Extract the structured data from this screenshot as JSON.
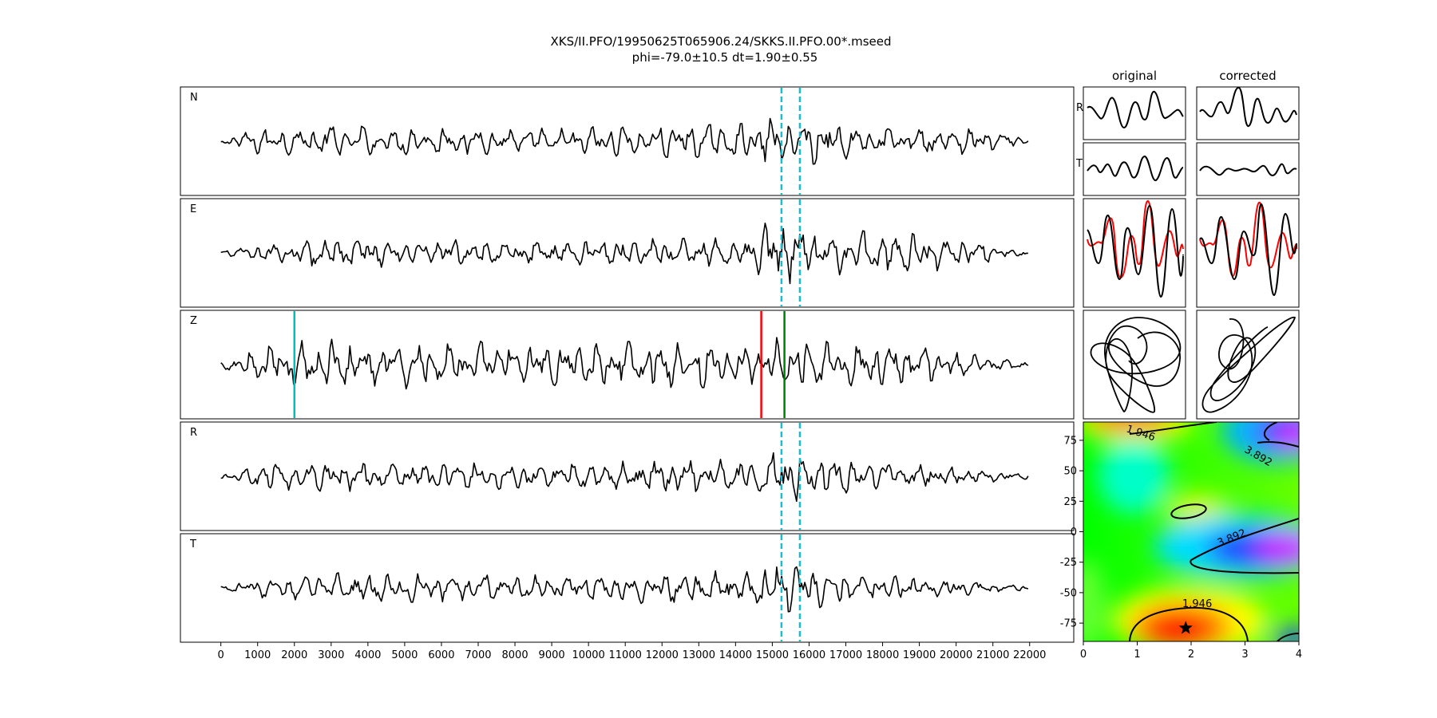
{
  "chart_data": {
    "type": "line",
    "title": "XKS/II.PFO/19950625T065906.24/SKKS.II.PFO.00*.mseed",
    "subtitle": "phi=-79.0±10.5 dt=1.90±0.55",
    "colors": {
      "trace": "#000000",
      "window_marker": "#17becf",
      "start_marker": "#00bfbf",
      "pick_red": "#ff0000",
      "pick_green": "#008000",
      "corrected_overlay": "#ff0000"
    },
    "traces": {
      "x_range": [
        -1100,
        23200
      ],
      "x_ticks": [
        0,
        1000,
        2000,
        3000,
        4000,
        5000,
        6000,
        7000,
        8000,
        9000,
        10000,
        11000,
        12000,
        13000,
        14000,
        15000,
        16000,
        17000,
        18000,
        19000,
        20000,
        21000,
        22000
      ],
      "x_tick_labels": [
        "0",
        "1000",
        "2000",
        "3000",
        "4000",
        "5000",
        "6000",
        "7000",
        "8000",
        "9000",
        "10000",
        "11000",
        "12000",
        "13000",
        "14000",
        "15000",
        "16000",
        "17000",
        "18000",
        "19000",
        "20000",
        "21000",
        "22000"
      ],
      "data_x_range": [
        0,
        22000
      ],
      "window": [
        15250,
        15750
      ],
      "z_markers": [
        {
          "x": 2000,
          "color": "#00bfbf"
        },
        {
          "x": 14700,
          "color": "#ff0000"
        },
        {
          "x": 15330,
          "color": "#008000"
        }
      ],
      "series": [
        {
          "name": "N",
          "envelope": [
            [
              0,
              0.05
            ],
            [
              1000,
              0.25
            ],
            [
              3000,
              0.3
            ],
            [
              8000,
              0.25
            ],
            [
              14500,
              0.35
            ],
            [
              15300,
              0.55
            ],
            [
              16500,
              0.4
            ],
            [
              17500,
              0.3
            ],
            [
              20500,
              0.25
            ],
            [
              22000,
              0.05
            ]
          ]
        },
        {
          "name": "E",
          "envelope": [
            [
              0,
              0.05
            ],
            [
              1500,
              0.2
            ],
            [
              2500,
              0.3
            ],
            [
              7500,
              0.25
            ],
            [
              14500,
              0.3
            ],
            [
              15000,
              0.8
            ],
            [
              15600,
              0.55
            ],
            [
              16500,
              0.4
            ],
            [
              17500,
              0.5
            ],
            [
              19500,
              0.35
            ],
            [
              22000,
              0.05
            ]
          ]
        },
        {
          "name": "Z",
          "envelope": [
            [
              0,
              0.1
            ],
            [
              1000,
              0.35
            ],
            [
              2500,
              0.5
            ],
            [
              8000,
              0.45
            ],
            [
              14500,
              0.45
            ],
            [
              15300,
              0.55
            ],
            [
              16500,
              0.45
            ],
            [
              18500,
              0.4
            ],
            [
              22000,
              0.05
            ]
          ]
        },
        {
          "name": "R",
          "envelope": [
            [
              0,
              0.05
            ],
            [
              1000,
              0.25
            ],
            [
              3000,
              0.3
            ],
            [
              8000,
              0.25
            ],
            [
              14500,
              0.35
            ],
            [
              15200,
              0.6
            ],
            [
              16500,
              0.35
            ],
            [
              18000,
              0.3
            ],
            [
              22000,
              0.05
            ]
          ]
        },
        {
          "name": "T",
          "envelope": [
            [
              0,
              0.05
            ],
            [
              1500,
              0.25
            ],
            [
              3000,
              0.3
            ],
            [
              8000,
              0.25
            ],
            [
              14500,
              0.35
            ],
            [
              15000,
              0.75
            ],
            [
              15600,
              0.5
            ],
            [
              16500,
              0.35
            ],
            [
              22000,
              0.05
            ]
          ]
        }
      ]
    },
    "comparison": {
      "column_titles": [
        "original",
        "corrected"
      ],
      "row_labels": [
        "R",
        "T"
      ]
    },
    "grid_search": {
      "type": "heatmap",
      "x_range": [
        0,
        4
      ],
      "y_range": [
        -90,
        90
      ],
      "x_ticks": [
        0,
        1,
        2,
        3,
        4
      ],
      "y_ticks": [
        75,
        50,
        25,
        0,
        -25,
        -50,
        -75
      ],
      "contour_labels": [
        "1.946",
        "3.892",
        "3.892",
        "1.946"
      ],
      "best": {
        "dt": 1.9,
        "phi": -79.0
      }
    }
  }
}
